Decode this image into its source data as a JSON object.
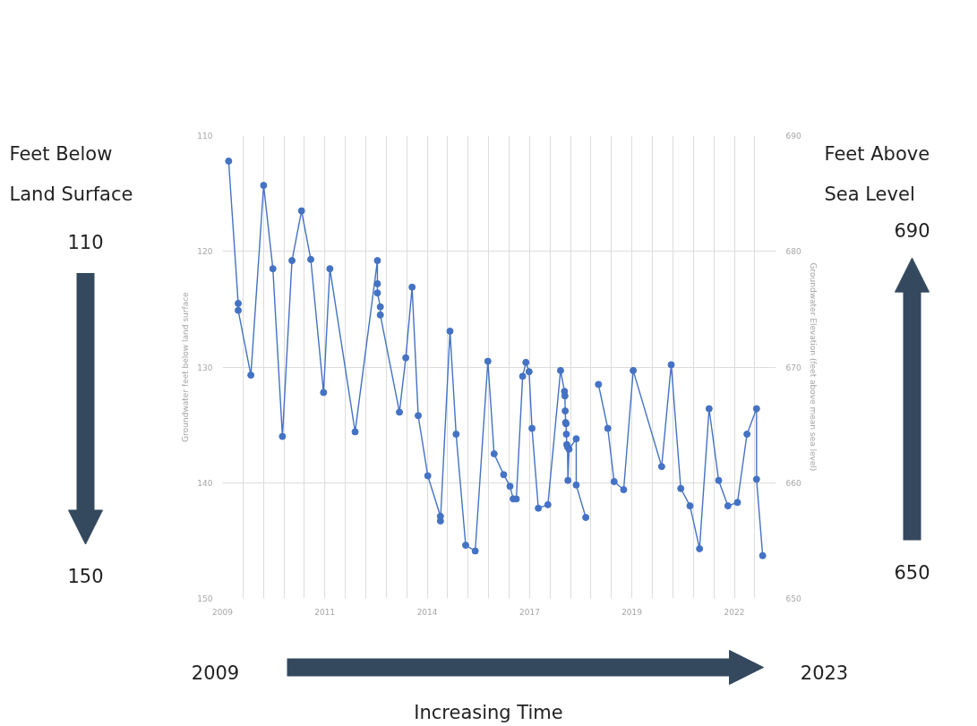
{
  "chart_data": {
    "type": "line",
    "x": [
      "2009-03",
      "2009-06",
      "2009-06",
      "2009-10",
      "2010-02",
      "2010-05",
      "2010-08",
      "2010-11",
      "2011-02",
      "2011-05",
      "2011-09",
      "2011-11",
      "2012-07",
      "2013-02",
      "2013-02",
      "2013-02",
      "2013-03",
      "2013-03",
      "2013-09",
      "2013-11",
      "2014-01",
      "2014-03",
      "2014-06",
      "2014-10",
      "2014-10",
      "2015-01",
      "2015-03",
      "2015-06",
      "2015-09",
      "2016-01",
      "2016-03",
      "2016-06",
      "2016-08",
      "2016-09",
      "2016-10",
      "2016-12",
      "2017-01",
      "2017-02",
      "2017-03",
      "2017-05",
      "2017-08",
      "2017-12",
      "2018-01-08",
      "2018-01-12",
      "2018-01-15",
      "2018-01-19",
      "2018-01-23",
      "2018-01-26",
      "2018-01-30",
      "2018-02-06",
      "2018-02-10",
      "2018-02-21",
      "2018-05",
      "2018-05",
      "2018-08",
      "2018-10",
      "2018-12",
      "2019-03",
      "2019-05",
      "2019-08",
      "2019-11",
      "2020-08",
      "2020-11",
      "2021-02",
      "2021-05",
      "2021-08",
      "2021-11",
      "2022-02",
      "2022-05",
      "2022-08",
      "2022-11",
      "2023-02",
      "2023-02",
      "2023-04"
    ],
    "series": [
      {
        "color": "#4472c4",
        "values": [
          112.2,
          124.5,
          125.1,
          130.7,
          114.3,
          121.5,
          136.0,
          120.8,
          116.5,
          120.7,
          132.2,
          121.5,
          135.6,
          120.8,
          122.8,
          123.6,
          124.8,
          125.5,
          133.9,
          129.2,
          123.1,
          134.2,
          139.4,
          142.9,
          143.3,
          126.9,
          135.8,
          145.4,
          145.9,
          129.5,
          137.5,
          139.3,
          140.3,
          141.4,
          141.4,
          130.8,
          129.6,
          130.4,
          135.3,
          142.2,
          141.9,
          130.3,
          132.1,
          132.5,
          133.8,
          134.8,
          134.9,
          135.8,
          136.7,
          136.9,
          139.8,
          137.1,
          136.2,
          140.2,
          143.0,
          null,
          131.5,
          135.3,
          139.9,
          140.6,
          130.3,
          138.6,
          129.8,
          140.5,
          142.0,
          145.7,
          133.6,
          139.8,
          142.0,
          141.7,
          135.8,
          133.6,
          139.7,
          146.3
        ]
      }
    ],
    "xlim": [
      "2009-01-01",
      "2023-08-07"
    ],
    "xticks": [
      {
        "value": "2009-01-01",
        "label": "2009"
      },
      {
        "value": "2009-07-16",
        "label": null
      },
      {
        "value": "2010-01-30",
        "label": null
      },
      {
        "value": "2010-08-15",
        "label": null
      },
      {
        "value": "2011-02-28",
        "label": null
      },
      {
        "value": "2011-09-13",
        "label": "2011"
      },
      {
        "value": "2012-03-29",
        "label": null
      },
      {
        "value": "2012-10-12",
        "label": null
      },
      {
        "value": "2013-04-27",
        "label": null
      },
      {
        "value": "2013-11-10",
        "label": null
      },
      {
        "value": "2014-05-27",
        "label": "2014"
      },
      {
        "value": "2014-12-09",
        "label": null
      },
      {
        "value": "2015-06-25",
        "label": null
      },
      {
        "value": "2016-01-08",
        "label": null
      },
      {
        "value": "2016-07-23",
        "label": null
      },
      {
        "value": "2017-02-06",
        "label": "2017"
      },
      {
        "value": "2017-08-22",
        "label": null
      },
      {
        "value": "2018-03-07",
        "label": null
      },
      {
        "value": "2018-09-20",
        "label": null
      },
      {
        "value": "2019-04-06",
        "label": null
      },
      {
        "value": "2019-10-19",
        "label": "2019"
      },
      {
        "value": "2020-05-05",
        "label": null
      },
      {
        "value": "2020-11-17",
        "label": null
      },
      {
        "value": "2021-06-03",
        "label": null
      },
      {
        "value": "2021-12-17",
        "label": null
      },
      {
        "value": "2022-07-02",
        "label": "2022"
      },
      {
        "value": "2023-01-15",
        "label": null
      }
    ],
    "ylim": [
      150,
      110
    ],
    "yticks": [
      110,
      120,
      130,
      140,
      150
    ],
    "y2lim": [
      650,
      690
    ],
    "y2ticks": [
      650,
      660,
      670,
      680,
      690
    ],
    "ylabel": "Groundwater feet below land surface",
    "y2label": "Groundwater Elevation (feet above mean sea level)",
    "annotations": [
      "Feet Below Land Surface",
      "110",
      "150",
      "Feet Above Sea Level",
      "690",
      "650",
      "2009",
      "2023",
      "Increasing Time"
    ],
    "grid": true,
    "marker": "circle",
    "line_style": "solid"
  }
}
